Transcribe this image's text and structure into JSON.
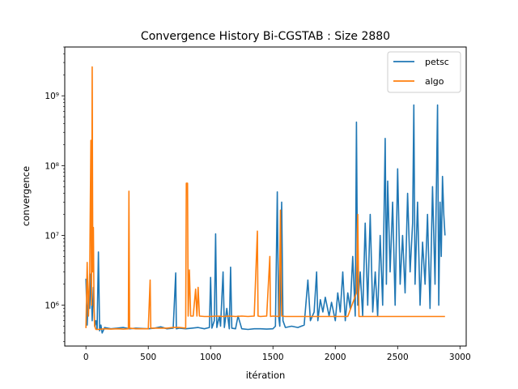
{
  "chart_data": {
    "type": "line",
    "title": "Convergence History Bi-CGSTAB : Size 2880",
    "xlabel": "itération",
    "ylabel": "convergence",
    "xlim": [
      -170,
      3050
    ],
    "yscale": "log",
    "ylim": [
      260000,
      5000000000
    ],
    "xticks": [
      0,
      500,
      1000,
      1500,
      2000,
      2500,
      3000
    ],
    "xtick_labels": [
      "0",
      "500",
      "1000",
      "1500",
      "2000",
      "2500",
      "3000"
    ],
    "yticks": [
      1000000,
      10000000,
      100000000,
      1000000000
    ],
    "ytick_labels": [
      "10⁶",
      "10⁷",
      "10⁸",
      "10⁹"
    ],
    "grid": false,
    "legend_position": "top-right",
    "series": [
      {
        "name": "petsc",
        "color": "#1f77b4",
        "points": [
          [
            0,
            2400000
          ],
          [
            10,
            520000
          ],
          [
            20,
            1500000
          ],
          [
            30,
            900000
          ],
          [
            40,
            2800000
          ],
          [
            50,
            600000
          ],
          [
            60,
            1800000
          ],
          [
            70,
            500000
          ],
          [
            80,
            600000
          ],
          [
            90,
            450000
          ],
          [
            100,
            5800000
          ],
          [
            110,
            430000
          ],
          [
            120,
            520000
          ],
          [
            130,
            400000
          ],
          [
            150,
            480000
          ],
          [
            200,
            460000
          ],
          [
            250,
            470000
          ],
          [
            300,
            480000
          ],
          [
            350,
            460000
          ],
          [
            400,
            470000
          ],
          [
            450,
            465000
          ],
          [
            500,
            460000
          ],
          [
            550,
            470000
          ],
          [
            600,
            490000
          ],
          [
            650,
            460000
          ],
          [
            700,
            470000
          ],
          [
            720,
            2900000
          ],
          [
            725,
            460000
          ],
          [
            750,
            470000
          ],
          [
            800,
            460000
          ],
          [
            850,
            470000
          ],
          [
            900,
            480000
          ],
          [
            950,
            460000
          ],
          [
            990,
            480000
          ],
          [
            1000,
            2500000
          ],
          [
            1010,
            470000
          ],
          [
            1030,
            600000
          ],
          [
            1040,
            10500000
          ],
          [
            1050,
            480000
          ],
          [
            1070,
            700000
          ],
          [
            1080,
            500000
          ],
          [
            1100,
            3000000
          ],
          [
            1110,
            480000
          ],
          [
            1130,
            900000
          ],
          [
            1150,
            460000
          ],
          [
            1160,
            3500000
          ],
          [
            1170,
            470000
          ],
          [
            1200,
            460000
          ],
          [
            1220,
            700000
          ],
          [
            1250,
            460000
          ],
          [
            1300,
            450000
          ],
          [
            1350,
            460000
          ],
          [
            1400,
            460000
          ],
          [
            1450,
            455000
          ],
          [
            1500,
            460000
          ],
          [
            1520,
            500000
          ],
          [
            1535,
            42000000
          ],
          [
            1545,
            700000
          ],
          [
            1555,
            500000
          ],
          [
            1570,
            30000000
          ],
          [
            1580,
            600000
          ],
          [
            1600,
            480000
          ],
          [
            1650,
            500000
          ],
          [
            1700,
            480000
          ],
          [
            1750,
            520000
          ],
          [
            1780,
            2300000
          ],
          [
            1800,
            600000
          ],
          [
            1830,
            800000
          ],
          [
            1850,
            3000000
          ],
          [
            1860,
            600000
          ],
          [
            1880,
            1200000
          ],
          [
            1900,
            800000
          ],
          [
            1920,
            1300000
          ],
          [
            1950,
            700000
          ],
          [
            1970,
            1100000
          ],
          [
            2000,
            600000
          ],
          [
            2020,
            1500000
          ],
          [
            2040,
            800000
          ],
          [
            2060,
            3000000
          ],
          [
            2080,
            600000
          ],
          [
            2100,
            1500000
          ],
          [
            2120,
            900000
          ],
          [
            2140,
            5000000
          ],
          [
            2160,
            700000
          ],
          [
            2170,
            420000000
          ],
          [
            2180,
            1000000
          ],
          [
            2200,
            3000000
          ],
          [
            2220,
            700000
          ],
          [
            2240,
            15000000
          ],
          [
            2260,
            1000000
          ],
          [
            2280,
            20000000
          ],
          [
            2300,
            800000
          ],
          [
            2320,
            3000000
          ],
          [
            2340,
            700000
          ],
          [
            2360,
            10000000
          ],
          [
            2380,
            1000000
          ],
          [
            2400,
            245000000
          ],
          [
            2410,
            2000000
          ],
          [
            2420,
            60000000
          ],
          [
            2440,
            3000000
          ],
          [
            2460,
            30000000
          ],
          [
            2480,
            1000000
          ],
          [
            2500,
            90000000
          ],
          [
            2520,
            2000000
          ],
          [
            2540,
            10000000
          ],
          [
            2560,
            1500000
          ],
          [
            2580,
            40000000
          ],
          [
            2600,
            3000000
          ],
          [
            2620,
            15000000
          ],
          [
            2630,
            740000000
          ],
          [
            2640,
            2000000
          ],
          [
            2660,
            30000000
          ],
          [
            2680,
            1000000
          ],
          [
            2700,
            8000000
          ],
          [
            2720,
            2000000
          ],
          [
            2740,
            20000000
          ],
          [
            2760,
            900000
          ],
          [
            2780,
            50000000
          ],
          [
            2800,
            2000000
          ],
          [
            2820,
            740000000
          ],
          [
            2830,
            1000000
          ],
          [
            2840,
            30000000
          ],
          [
            2850,
            5000000
          ],
          [
            2860,
            70000000
          ],
          [
            2870,
            20000000
          ],
          [
            2880,
            10000000
          ]
        ]
      },
      {
        "name": "algo",
        "color": "#ff7f0e",
        "points": [
          [
            0,
            470000
          ],
          [
            10,
            4100000
          ],
          [
            20,
            700000
          ],
          [
            30,
            2800000
          ],
          [
            40,
            230000000
          ],
          [
            45,
            1000000
          ],
          [
            50,
            2600000000
          ],
          [
            55,
            3000000
          ],
          [
            60,
            13000000
          ],
          [
            65,
            800000
          ],
          [
            70,
            500000
          ],
          [
            80,
            450000
          ],
          [
            100,
            450000
          ],
          [
            150,
            460000
          ],
          [
            200,
            455000
          ],
          [
            250,
            460000
          ],
          [
            300,
            455000
          ],
          [
            340,
            460000
          ],
          [
            345,
            43000000
          ],
          [
            350,
            470000
          ],
          [
            400,
            460000
          ],
          [
            450,
            460000
          ],
          [
            500,
            460000
          ],
          [
            515,
            2300000
          ],
          [
            520,
            470000
          ],
          [
            550,
            470000
          ],
          [
            600,
            470000
          ],
          [
            650,
            470000
          ],
          [
            700,
            480000
          ],
          [
            750,
            480000
          ],
          [
            800,
            470000
          ],
          [
            805,
            56000000
          ],
          [
            815,
            56000000
          ],
          [
            820,
            700000
          ],
          [
            830,
            3200000
          ],
          [
            840,
            700000
          ],
          [
            860,
            700000
          ],
          [
            880,
            1700000
          ],
          [
            890,
            700000
          ],
          [
            900,
            1800000
          ],
          [
            910,
            700000
          ],
          [
            950,
            690000
          ],
          [
            1000,
            690000
          ],
          [
            1050,
            700000
          ],
          [
            1100,
            690000
          ],
          [
            1150,
            700000
          ],
          [
            1200,
            690000
          ],
          [
            1250,
            700000
          ],
          [
            1300,
            690000
          ],
          [
            1350,
            700000
          ],
          [
            1375,
            11500000
          ],
          [
            1380,
            700000
          ],
          [
            1400,
            690000
          ],
          [
            1450,
            700000
          ],
          [
            1475,
            5000000
          ],
          [
            1480,
            690000
          ],
          [
            1500,
            700000
          ],
          [
            1550,
            690000
          ],
          [
            1560,
            23000000
          ],
          [
            1570,
            700000
          ],
          [
            1600,
            690000
          ],
          [
            1650,
            690000
          ],
          [
            1700,
            690000
          ],
          [
            1800,
            690000
          ],
          [
            1900,
            690000
          ],
          [
            2000,
            690000
          ],
          [
            2100,
            690000
          ],
          [
            2170,
            1500000
          ],
          [
            2180,
            20000000
          ],
          [
            2190,
            690000
          ],
          [
            2300,
            690000
          ],
          [
            2400,
            690000
          ],
          [
            2500,
            690000
          ],
          [
            2600,
            690000
          ],
          [
            2700,
            690000
          ],
          [
            2800,
            690000
          ],
          [
            2880,
            690000
          ]
        ]
      }
    ]
  }
}
